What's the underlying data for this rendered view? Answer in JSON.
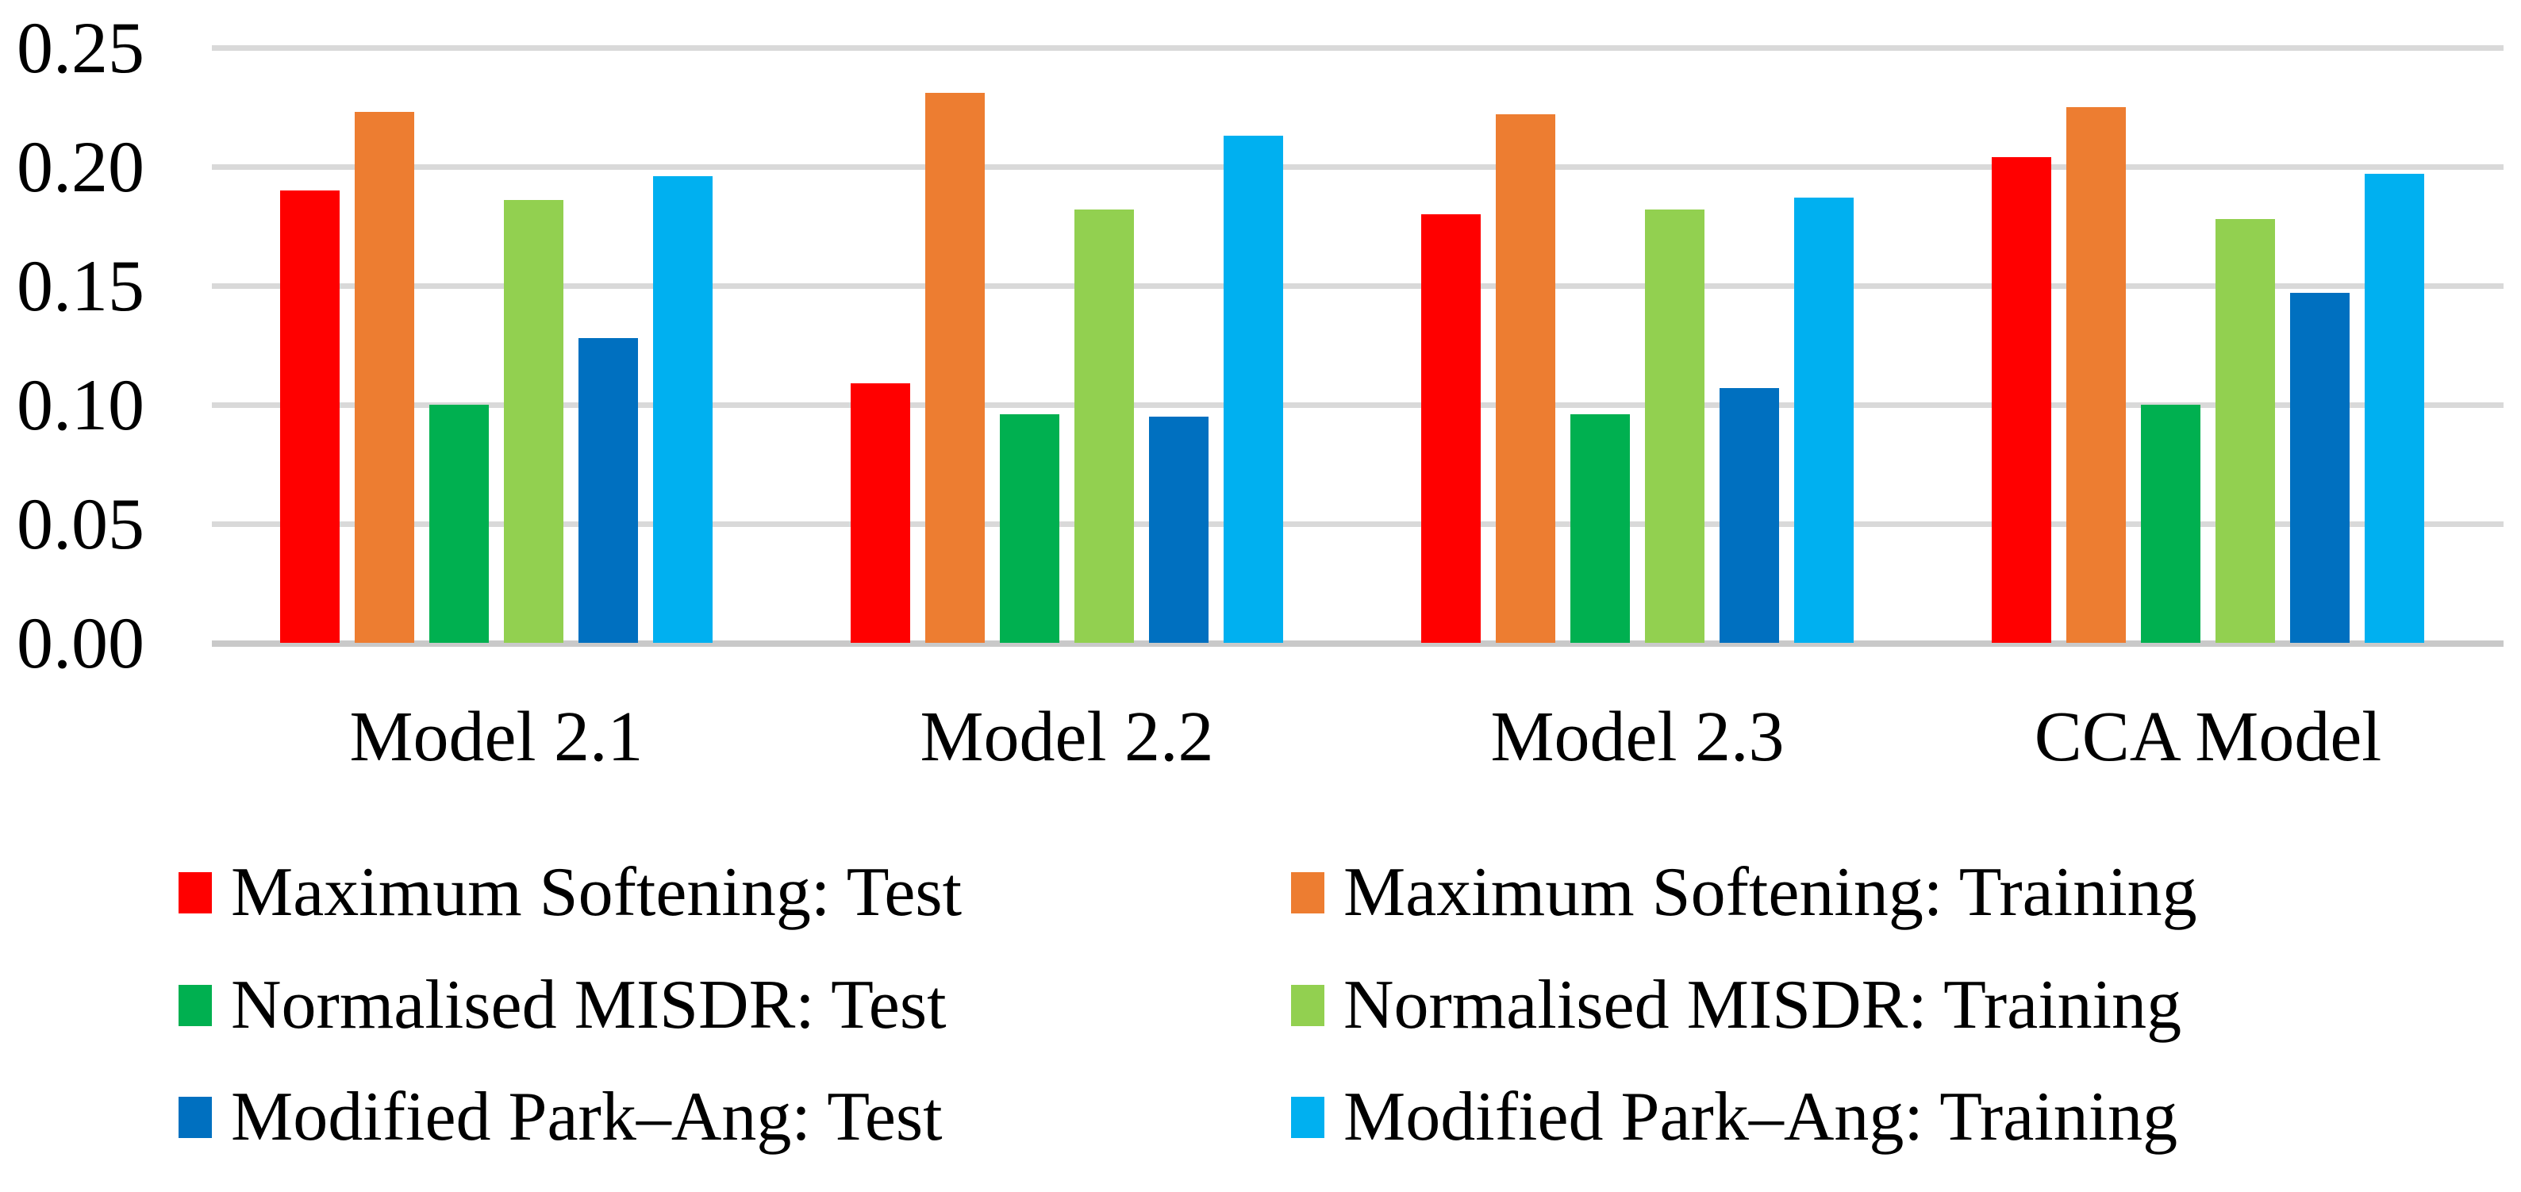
{
  "chart_data": {
    "type": "bar",
    "title": "",
    "xlabel": "",
    "ylabel": "",
    "categories": [
      "Model 2.1",
      "Model 2.2",
      "Model 2.3",
      "CCA Model"
    ],
    "series": [
      {
        "name": "Maximum Softening: Test",
        "color": "#FF0000",
        "values": [
          0.19,
          0.109,
          0.18,
          0.204
        ]
      },
      {
        "name": "Maximum Softening: Training",
        "color": "#ED7D31",
        "values": [
          0.223,
          0.231,
          0.222,
          0.225
        ]
      },
      {
        "name": "Normalised MISDR: Test",
        "color": "#00B050",
        "values": [
          0.1,
          0.096,
          0.096,
          0.1
        ]
      },
      {
        "name": "Normalised MISDR: Training",
        "color": "#92D050",
        "values": [
          0.186,
          0.182,
          0.182,
          0.178
        ]
      },
      {
        "name": "Modified Park–Ang: Test",
        "color": "#0070C0",
        "values": [
          0.128,
          0.095,
          0.107,
          0.147
        ]
      },
      {
        "name": "Modified Park–Ang: Training",
        "color": "#00B0F0",
        "values": [
          0.196,
          0.213,
          0.187,
          0.197
        ]
      }
    ],
    "y_axis": {
      "min": 0.0,
      "max": 0.25,
      "step": 0.05,
      "tick_labels": [
        "0.00",
        "0.05",
        "0.10",
        "0.15",
        "0.20",
        "0.25"
      ]
    },
    "grid": true,
    "gridline_color": "#D9D9D9",
    "axis_line_color": "#C9C9C9",
    "legend_position": "bottom",
    "legend_columns": [
      [
        0,
        2,
        4
      ],
      [
        1,
        3,
        5
      ]
    ]
  }
}
